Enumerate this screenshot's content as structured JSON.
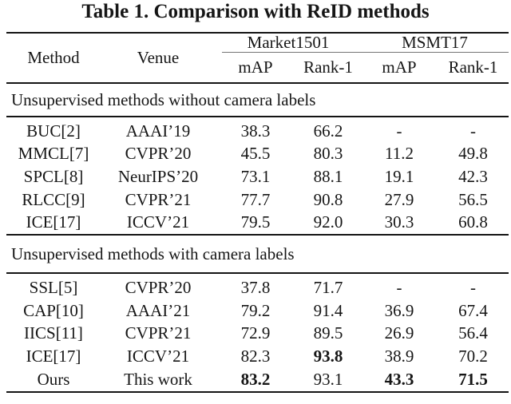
{
  "title": "Table 1. Comparison with ReID methods",
  "columns": {
    "method": "Method",
    "venue": "Venue",
    "groups": [
      {
        "label": "Market1501",
        "sub": [
          "mAP",
          "Rank-1"
        ]
      },
      {
        "label": "MSMT17",
        "sub": [
          "mAP",
          "Rank-1"
        ]
      }
    ]
  },
  "sections": [
    {
      "heading": "Unsupervised methods without camera labels",
      "rows": [
        {
          "method": "BUC[2]",
          "venue": "AAAI’19",
          "values": [
            "38.3",
            "66.2",
            "-",
            "-"
          ],
          "bold": [
            false,
            false,
            false,
            false
          ]
        },
        {
          "method": "MMCL[7]",
          "venue": "CVPR’20",
          "values": [
            "45.5",
            "80.3",
            "11.2",
            "49.8"
          ],
          "bold": [
            false,
            false,
            false,
            false
          ]
        },
        {
          "method": "SPCL[8]",
          "venue": "NeurIPS’20",
          "values": [
            "73.1",
            "88.1",
            "19.1",
            "42.3"
          ],
          "bold": [
            false,
            false,
            false,
            false
          ]
        },
        {
          "method": "RLCC[9]",
          "venue": "CVPR’21",
          "values": [
            "77.7",
            "90.8",
            "27.9",
            "56.5"
          ],
          "bold": [
            false,
            false,
            false,
            false
          ]
        },
        {
          "method": "ICE[17]",
          "venue": "ICCV’21",
          "values": [
            "79.5",
            "92.0",
            "30.3",
            "60.8"
          ],
          "bold": [
            false,
            false,
            false,
            false
          ]
        }
      ]
    },
    {
      "heading": "Unsupervised methods with camera labels",
      "rows": [
        {
          "method": "SSL[5]",
          "venue": "CVPR’20",
          "values": [
            "37.8",
            "71.7",
            "-",
            "-"
          ],
          "bold": [
            false,
            false,
            false,
            false
          ]
        },
        {
          "method": "CAP[10]",
          "venue": "AAAI’21",
          "values": [
            "79.2",
            "91.4",
            "36.9",
            "67.4"
          ],
          "bold": [
            false,
            false,
            false,
            false
          ]
        },
        {
          "method": "IICS[11]",
          "venue": "CVPR’21",
          "values": [
            "72.9",
            "89.5",
            "26.9",
            "56.4"
          ],
          "bold": [
            false,
            false,
            false,
            false
          ]
        },
        {
          "method": "ICE[17]",
          "venue": "ICCV’21",
          "values": [
            "82.3",
            "93.8",
            "38.9",
            "70.2"
          ],
          "bold": [
            false,
            true,
            false,
            false
          ]
        },
        {
          "method": "Ours",
          "venue": "This work",
          "values": [
            "83.2",
            "93.1",
            "43.3",
            "71.5"
          ],
          "bold": [
            true,
            false,
            true,
            true
          ]
        }
      ]
    }
  ]
}
